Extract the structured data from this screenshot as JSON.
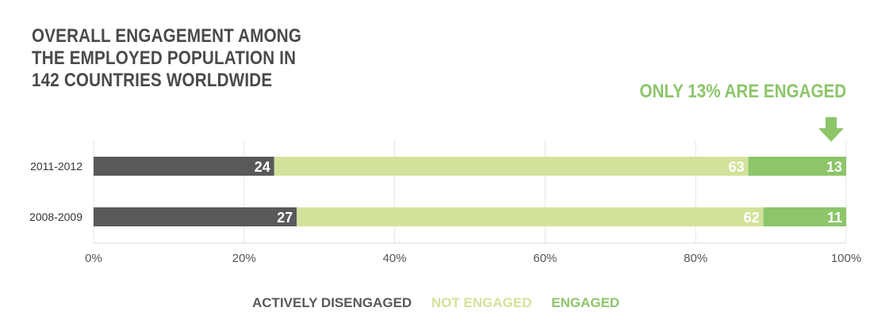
{
  "title_lines": [
    "OVERALL ENGAGEMENT AMONG",
    "THE EMPLOYED POPULATION IN",
    "142 COUNTRIES WORLDWIDE"
  ],
  "callout": "ONLY 13% ARE ENGAGED",
  "colors": {
    "actively_disengaged": "#58595b",
    "not_engaged": "#d3e29a",
    "engaged": "#8cc56a",
    "title": "#4a4a4c",
    "grid": "#e6e6e6"
  },
  "chart_data": {
    "type": "bar",
    "orientation": "horizontal",
    "stacked": true,
    "categories": [
      "2011-2012",
      "2008-2009"
    ],
    "series": [
      {
        "name": "ACTIVELY DISENGAGED",
        "values": [
          24,
          27
        ]
      },
      {
        "name": "NOT ENGAGED",
        "values": [
          63,
          62
        ]
      },
      {
        "name": "ENGAGED",
        "values": [
          13,
          11
        ]
      }
    ],
    "xlim": [
      0,
      100
    ],
    "x_ticks": [
      "0%",
      "20%",
      "40%",
      "60%",
      "80%",
      "100%"
    ],
    "grid": true,
    "legend_position": "bottom"
  }
}
